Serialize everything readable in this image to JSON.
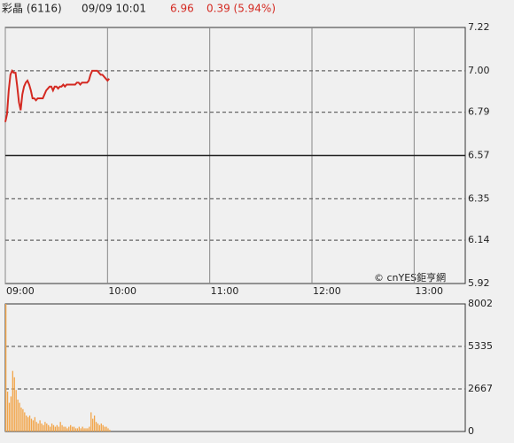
{
  "header": {
    "name": "彩晶 (6116)",
    "time": "09/09 10:01",
    "price": 6.96,
    "change": "0.39 (5.94%)"
  },
  "chart_data": [
    {
      "type": "line",
      "copyright": "© cnYES鉅亨網",
      "color": "#d42a22",
      "xlim": [
        "09:00",
        "13:30"
      ],
      "xticks": [
        "09:00",
        "10:00",
        "11:00",
        "12:00",
        "13:00"
      ],
      "ylim": [
        5.92,
        7.22
      ],
      "yticks": [
        7.22,
        {
          "value": 7,
          "label": "7.00"
        },
        6.79,
        6.57,
        6.35,
        6.14,
        5.92
      ],
      "baseline": 6.57,
      "grid": true,
      "x": [
        "09:00",
        "09:01",
        "09:02",
        "09:03",
        "09:04",
        "09:05",
        "09:06",
        "09:07",
        "09:08",
        "09:09",
        "09:10",
        "09:11",
        "09:12",
        "09:13",
        "09:14",
        "09:15",
        "09:16",
        "09:17",
        "09:18",
        "09:19",
        "09:20",
        "09:21",
        "09:22",
        "09:23",
        "09:24",
        "09:25",
        "09:26",
        "09:27",
        "09:28",
        "09:29",
        "09:30",
        "09:31",
        "09:32",
        "09:33",
        "09:34",
        "09:35",
        "09:36",
        "09:37",
        "09:38",
        "09:39",
        "09:40",
        "09:41",
        "09:42",
        "09:43",
        "09:44",
        "09:45",
        "09:46",
        "09:47",
        "09:48",
        "09:49",
        "09:50",
        "09:51",
        "09:52",
        "09:53",
        "09:54",
        "09:55",
        "09:56",
        "09:57",
        "09:58",
        "09:59",
        "10:00",
        "10:01"
      ],
      "values": [
        6.74,
        6.78,
        6.9,
        6.98,
        7.0,
        6.99,
        6.99,
        6.92,
        6.84,
        6.8,
        6.88,
        6.92,
        6.94,
        6.95,
        6.93,
        6.9,
        6.86,
        6.86,
        6.85,
        6.86,
        6.86,
        6.86,
        6.86,
        6.88,
        6.9,
        6.91,
        6.92,
        6.92,
        6.9,
        6.92,
        6.92,
        6.91,
        6.92,
        6.92,
        6.93,
        6.92,
        6.93,
        6.93,
        6.93,
        6.93,
        6.93,
        6.93,
        6.94,
        6.94,
        6.93,
        6.94,
        6.94,
        6.94,
        6.94,
        6.95,
        6.98,
        7.0,
        7.0,
        7.0,
        7.0,
        6.99,
        6.98,
        6.98,
        6.97,
        6.96,
        6.95,
        6.96
      ]
    },
    {
      "type": "bar",
      "color": "#f2a54a",
      "ylim": [
        0,
        8002
      ],
      "yticks": [
        8002,
        5335,
        2667,
        0
      ],
      "grid": true,
      "values": [
        8002,
        2500,
        1800,
        2200,
        3800,
        3400,
        2600,
        2000,
        1800,
        1500,
        1400,
        1200,
        1000,
        900,
        1000,
        800,
        700,
        900,
        600,
        500,
        700,
        500,
        400,
        600,
        500,
        400,
        300,
        500,
        400,
        300,
        400,
        300,
        600,
        400,
        300,
        300,
        200,
        300,
        400,
        300,
        300,
        200,
        200,
        300,
        200,
        300,
        200,
        200,
        200,
        300,
        1200,
        800,
        1000,
        600,
        500,
        400,
        500,
        400,
        300,
        300,
        200,
        100
      ]
    }
  ]
}
